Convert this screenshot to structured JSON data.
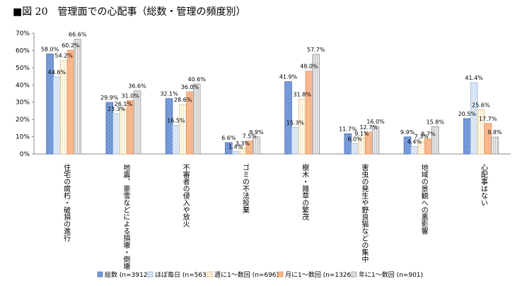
{
  "title": "■図 20　管理面での心配事（総数・管理の頻度別）",
  "colors": {
    "total": "#7b9fdc",
    "almost_daily": "#dde9f8",
    "weekly": "#fbf3d4",
    "monthly": "#f7b58a",
    "yearly": "#dcdcdc"
  },
  "chart_data": {
    "type": "bar",
    "title": "管理面での心配事（総数・管理の頻度別）",
    "xlabel": "",
    "ylabel": "",
    "ylim": [
      0,
      70
    ],
    "yticks": [
      "0%",
      "10%",
      "20%",
      "30%",
      "40%",
      "50%",
      "60%",
      "70%"
    ],
    "grid": false,
    "legend": "bottom",
    "categories": [
      "住宅の腐朽・破損の進行",
      "地震、豪雪などによる損壊・倒壊",
      "不審者の侵入や放火",
      "ゴミの不法投棄",
      "樹木・雑草の繁茂",
      "害虫の発生や野良猫などの集中",
      "地域の景観への悪影響",
      "心配事はない"
    ],
    "series": [
      {
        "name": "総数 (n=3912)",
        "values": [
          58.0,
          29.9,
          32.1,
          6.6,
          41.9,
          11.7,
          9.9,
          20.5
        ],
        "labels": [
          "58.0%",
          "29.9%",
          "32.1%",
          "6.6%",
          "41.9%",
          "11.7%",
          "9.9%",
          "20.5%"
        ]
      },
      {
        "name": "ほぼ毎日 (n=563)",
        "values": [
          44.6,
          23.3,
          16.5,
          1.4,
          15.3,
          6.0,
          4.4,
          41.4
        ],
        "labels": [
          "44.6%",
          "23.3%",
          "16.5%",
          "1.4%",
          "15.3%",
          "6.0%",
          "4.4%",
          "41.4%"
        ]
      },
      {
        "name": "週に1～数回 (n=696)",
        "values": [
          54.2,
          26.1,
          28.6,
          3.3,
          31.8,
          9.1,
          7.3,
          25.6
        ],
        "labels": [
          "54.2%",
          "26.1%",
          "28.6%",
          "3.3%",
          "31.8%",
          "9.1%",
          "7.3%",
          "25.6%"
        ]
      },
      {
        "name": "月に1～数回 (n=1326)",
        "values": [
          60.2,
          31.0,
          36.0,
          7.5,
          48.0,
          12.7,
          8.7,
          17.7
        ],
        "labels": [
          "60.2%",
          "31.0%",
          "36.0%",
          "7.5%",
          "48.0%",
          "12.7%",
          "8.7%",
          "17.7%"
        ]
      },
      {
        "name": "年に1～数回 (n=901)",
        "values": [
          66.6,
          36.6,
          40.6,
          9.9,
          57.7,
          16.0,
          15.8,
          9.8
        ],
        "labels": [
          "66.6%",
          "36.6%",
          "40.6%",
          "9.9%",
          "57.7%",
          "16.0%",
          "15.8%",
          "9.8%"
        ]
      }
    ]
  }
}
